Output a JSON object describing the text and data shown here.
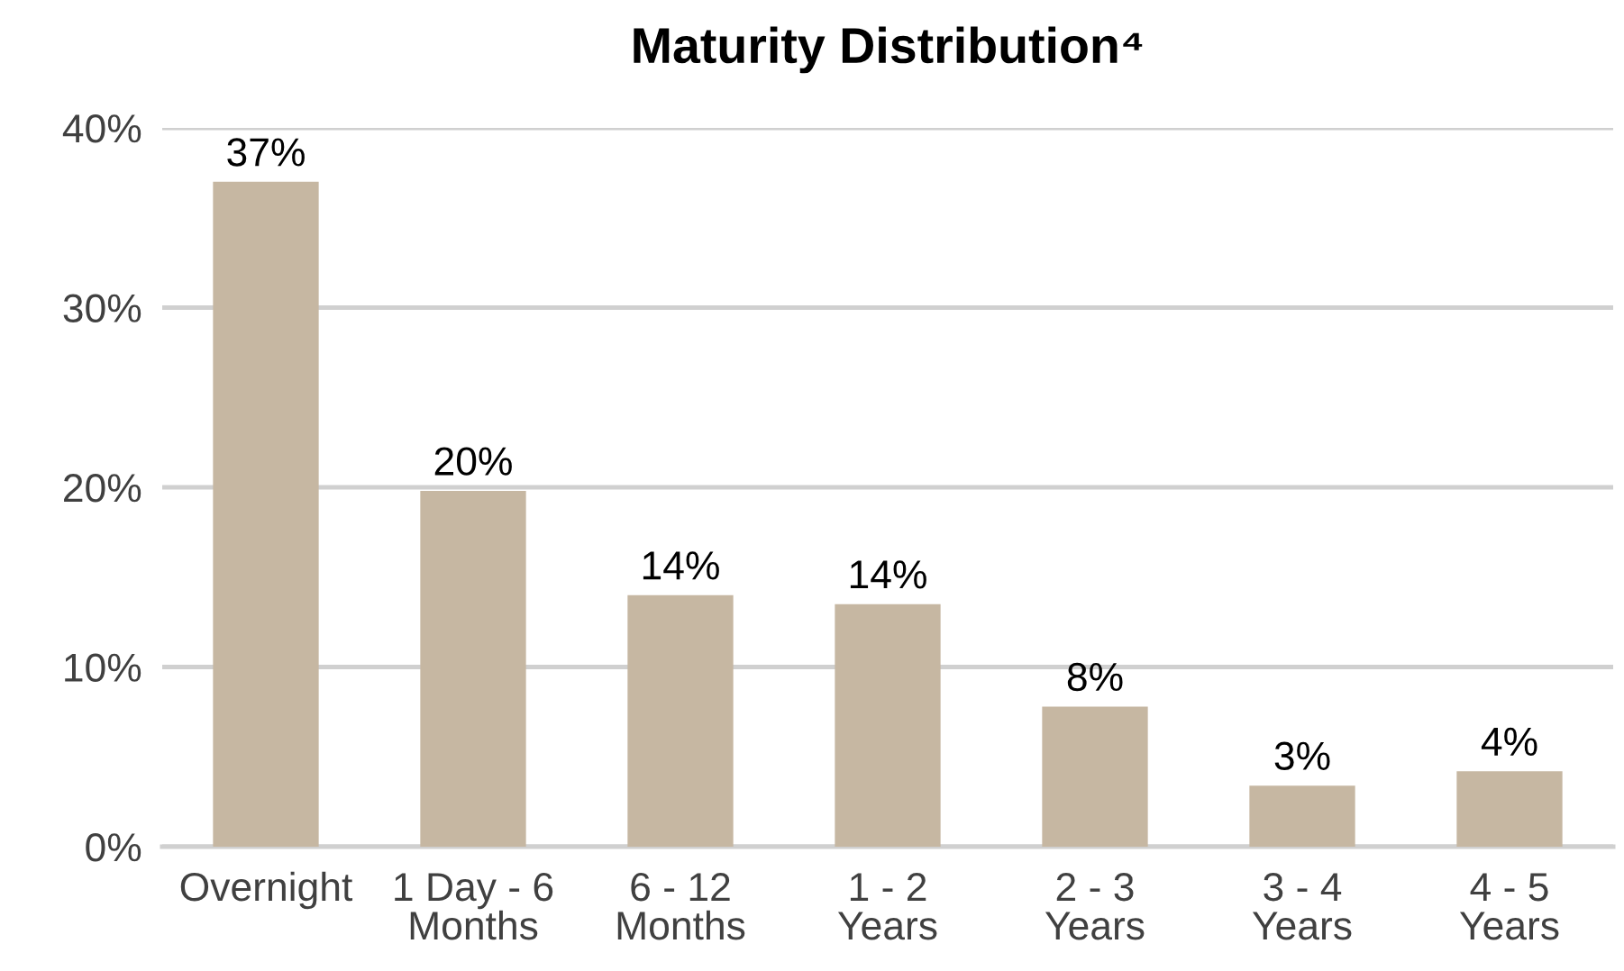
{
  "chart_data": {
    "type": "bar",
    "title": "Maturity Distribution⁴",
    "categories": [
      "Overnight",
      "1 Day - 6\nMonths",
      "6 - 12\nMonths",
      "1 - 2\nYears",
      "2 - 3\nYears",
      "3 - 4\nYears",
      "4 - 5\nYears"
    ],
    "values": [
      37.0,
      19.8,
      14.0,
      13.5,
      7.8,
      3.4,
      4.2
    ],
    "value_labels": [
      "37%",
      "20%",
      "14%",
      "14%",
      "8%",
      "3%",
      "4%"
    ],
    "color": "#c6b7a2",
    "ylim": [
      0,
      40
    ],
    "yticks": [
      {
        "value": 0,
        "label": "0%"
      },
      {
        "value": 10,
        "label": "10%"
      },
      {
        "value": 20,
        "label": "20%"
      },
      {
        "value": 30,
        "label": "30%"
      },
      {
        "value": 40,
        "label": "40%"
      }
    ],
    "grid": "y"
  }
}
